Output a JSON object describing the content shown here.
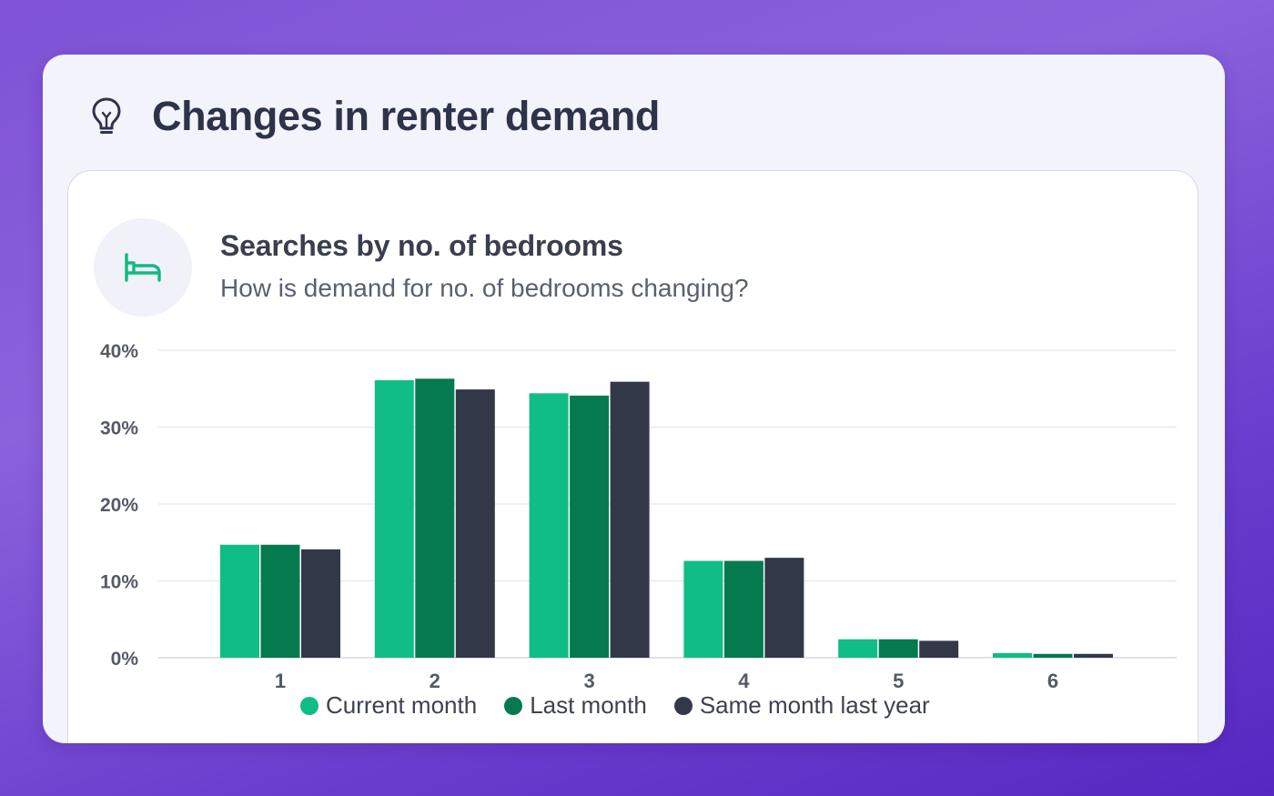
{
  "header": {
    "title": "Changes in renter demand",
    "icon": "lightbulb-icon"
  },
  "chart_card": {
    "icon": "bed-icon",
    "accent_color": "#12b981"
  },
  "chart_data": {
    "type": "bar",
    "title": "Searches by no. of bedrooms",
    "subtitle": "How is demand for no. of bedrooms changing?",
    "xlabel": "",
    "ylabel": "",
    "categories": [
      "1",
      "2",
      "3",
      "4",
      "5",
      "6"
    ],
    "yticks": [
      "0%",
      "10%",
      "20%",
      "30%",
      "40%"
    ],
    "ylim": [
      0,
      40
    ],
    "grid": true,
    "legend_position": "bottom",
    "series": [
      {
        "name": "Current month",
        "color": "#0fbd85",
        "values": [
          14.7,
          36.1,
          34.4,
          12.6,
          2.4,
          0.6
        ]
      },
      {
        "name": "Last month",
        "color": "#067a4f",
        "values": [
          14.7,
          36.3,
          34.1,
          12.6,
          2.4,
          0.5
        ]
      },
      {
        "name": "Same month last year",
        "color": "#333849",
        "values": [
          14.1,
          34.9,
          35.9,
          13.0,
          2.2,
          0.5
        ]
      }
    ]
  }
}
